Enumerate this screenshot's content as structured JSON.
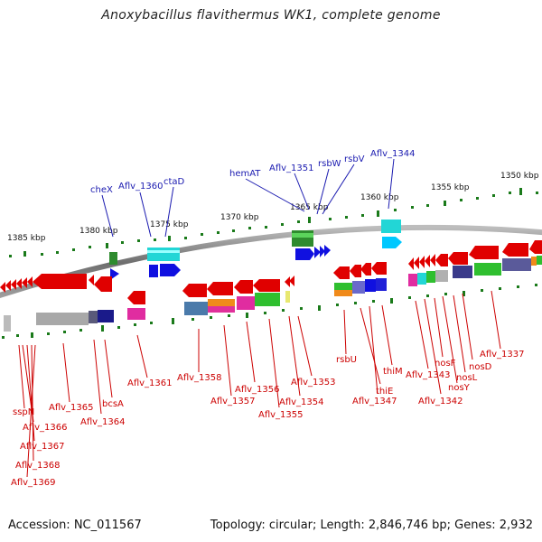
{
  "title": "Anoxybacillus flavithermus WK1, complete genome",
  "footer": {
    "accession": "Accession: NC_011567",
    "summary": "Topology: circular; Length: 2,846,746 bp; Genes: 2,932"
  },
  "scale_labels": [
    "1385 kbp",
    "1380 kbp",
    "1375 kbp",
    "1370 kbp",
    "1365 kbp",
    "1360 kbp",
    "1355 kbp",
    "1350 kbp"
  ],
  "top_labels": [
    "cheX",
    "Aflv_1360",
    "ctaD",
    "hemAT",
    "Aflv_1351",
    "rsbW",
    "rsbV",
    "Aflv_1344"
  ],
  "bottom_labels": [
    "sspN",
    "Aflv_1366",
    "Aflv_1367",
    "Aflv_1368",
    "Aflv_1369",
    "Aflv_1365",
    "Aflv_1364",
    "bcsA",
    "Aflv_1361",
    "Aflv_1358",
    "Aflv_1357",
    "Aflv_1356",
    "Aflv_1355",
    "Aflv_1354",
    "Aflv_1353",
    "rsbU",
    "thiE",
    "Aflv_1347",
    "thiM",
    "Aflv_1343",
    "Aflv_1342",
    "nosF",
    "nosY",
    "nosL",
    "nosD",
    "Aflv_1337"
  ],
  "colors": {
    "label_top": "#1a1ab0",
    "label_bottom": "#cc0000",
    "forward_gene": "#1010e0",
    "reverse_gene": "#e00000",
    "ticks": "#1a7a1a",
    "backbone": "#808080"
  }
}
